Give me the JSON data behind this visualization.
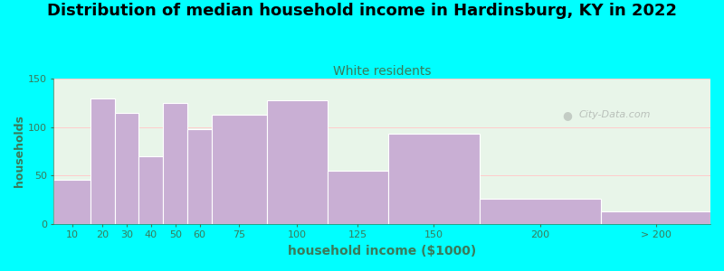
{
  "title": "Distribution of median household income in Hardinsburg, KY in 2022",
  "subtitle": "White residents",
  "xlabel": "household income ($1000)",
  "ylabel": "households",
  "bar_labels": [
    "10",
    "20",
    "30",
    "40",
    "50",
    "60",
    "75",
    "100",
    "125",
    "150",
    "200",
    "> 200"
  ],
  "bar_values": [
    46,
    130,
    115,
    70,
    125,
    98,
    113,
    128,
    55,
    93,
    26,
    13
  ],
  "bin_edges": [
    0,
    15,
    25,
    35,
    45,
    55,
    65,
    87.5,
    112.5,
    137.5,
    175,
    225,
    270
  ],
  "bar_color": "#c9afd4",
  "bg_color": "#00ffff",
  "plot_bg_color": "#e8f5e9",
  "title_fontsize": 13,
  "subtitle_color": "#3a7a5a",
  "subtitle_fontsize": 10,
  "axis_label_color": "#3a7a5a",
  "tick_color": "#3a7a5a",
  "ylim": [
    0,
    150
  ],
  "yticks": [
    0,
    50,
    100,
    150
  ],
  "grid_color": "#ffcccc",
  "watermark": "City-Data.com"
}
